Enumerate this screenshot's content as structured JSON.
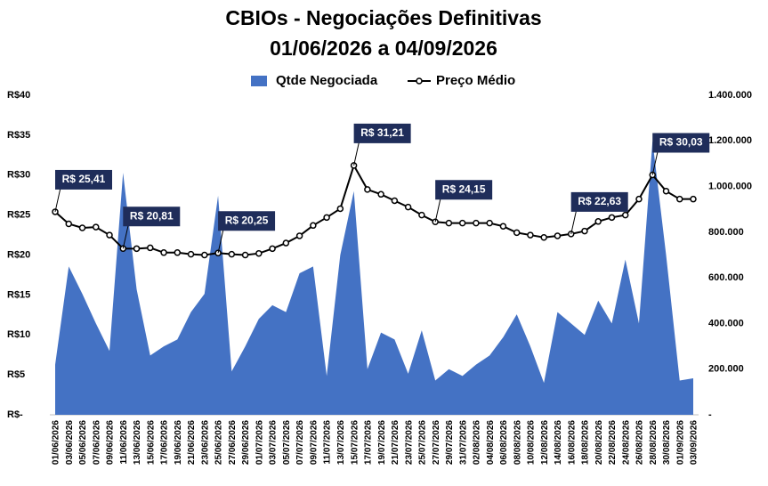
{
  "chart_data": {
    "type": "area-line",
    "title": "CBIOs - Negociações Definitivas",
    "subtitle": "01/06/2026 a 04/09/2026",
    "categories": [
      "01/06/2026",
      "03/06/2026",
      "05/06/2026",
      "07/06/2026",
      "09/06/2026",
      "11/06/2026",
      "13/06/2026",
      "15/06/2026",
      "17/06/2026",
      "19/06/2026",
      "21/06/2026",
      "23/06/2026",
      "25/06/2026",
      "27/06/2026",
      "29/06/2026",
      "01/07/2026",
      "03/07/2026",
      "05/07/2026",
      "07/07/2026",
      "09/07/2026",
      "11/07/2026",
      "13/07/2026",
      "15/07/2026",
      "17/07/2026",
      "19/07/2026",
      "21/07/2026",
      "23/07/2026",
      "25/07/2026",
      "27/07/2026",
      "29/07/2026",
      "31/07/2026",
      "02/08/2026",
      "04/08/2026",
      "06/08/2026",
      "08/08/2026",
      "10/08/2026",
      "12/08/2026",
      "14/08/2026",
      "16/08/2026",
      "18/08/2026",
      "20/08/2026",
      "22/08/2026",
      "24/08/2026",
      "26/08/2026",
      "28/08/2026",
      "30/08/2026",
      "01/09/2026",
      "03/09/2026"
    ],
    "series": [
      {
        "name": "Qtde Negociada",
        "color": "#4472c4",
        "axis": "y2",
        "values": [
          220000,
          650000,
          530000,
          400000,
          280000,
          1060000,
          550000,
          260000,
          300000,
          330000,
          450000,
          530000,
          960000,
          190000,
          300000,
          420000,
          480000,
          450000,
          620000,
          650000,
          170000,
          700000,
          980000,
          200000,
          360000,
          330000,
          180000,
          370000,
          150000,
          200000,
          170000,
          220000,
          260000,
          340000,
          440000,
          300000,
          140000,
          450000,
          400000,
          350000,
          500000,
          400000,
          680000,
          400000,
          1200000,
          700000,
          150000,
          160000
        ]
      },
      {
        "name": "Preço Médio",
        "color": "#000000",
        "axis": "y",
        "values": [
          25.41,
          23.9,
          23.4,
          23.5,
          22.5,
          20.81,
          20.8,
          20.9,
          20.3,
          20.3,
          20.1,
          20.0,
          20.25,
          20.1,
          20.0,
          20.2,
          20.8,
          21.5,
          22.4,
          23.7,
          24.7,
          25.8,
          31.21,
          28.2,
          27.6,
          26.8,
          26.0,
          25.0,
          24.15,
          24.0,
          24.0,
          24.0,
          24.0,
          23.6,
          22.8,
          22.5,
          22.2,
          22.4,
          22.63,
          23.0,
          24.2,
          24.7,
          25.0,
          27.0,
          30.03,
          28.0,
          27.0,
          27.0
        ],
        "value_labels": [
          "R$ 25,41",
          null,
          null,
          null,
          null,
          "R$ 20,81",
          null,
          null,
          null,
          null,
          null,
          null,
          "R$ 20,25",
          null,
          null,
          null,
          null,
          null,
          null,
          null,
          null,
          null,
          "R$ 31,21",
          null,
          null,
          null,
          null,
          null,
          "R$ 24,15",
          null,
          null,
          null,
          null,
          null,
          null,
          null,
          null,
          null,
          "R$ 22,63",
          null,
          null,
          null,
          null,
          null,
          "R$ 30,03",
          null,
          null,
          null
        ]
      }
    ],
    "ylim": [
      0,
      40
    ],
    "yticks": [
      {
        "value": 0,
        "label": "R$-"
      },
      {
        "value": 5,
        "label": "R$5"
      },
      {
        "value": 10,
        "label": "R$10"
      },
      {
        "value": 15,
        "label": "R$15"
      },
      {
        "value": 20,
        "label": "R$20"
      },
      {
        "value": 25,
        "label": "R$25"
      },
      {
        "value": 30,
        "label": "R$30"
      },
      {
        "value": 35,
        "label": "R$35"
      },
      {
        "value": 40,
        "label": "R$40"
      }
    ],
    "y2lim": [
      0,
      1400000
    ],
    "y2ticks": [
      {
        "value": 0,
        "label": "-"
      },
      {
        "value": 200000,
        "label": "200.000"
      },
      {
        "value": 400000,
        "label": "400.000"
      },
      {
        "value": 600000,
        "label": "600.000"
      },
      {
        "value": 800000,
        "label": "800.000"
      },
      {
        "value": 1000000,
        "label": "1.000.000"
      },
      {
        "value": 1200000,
        "label": "1.200.000"
      },
      {
        "value": 1400000,
        "label": "1.400.000"
      }
    ],
    "label_color": "#1f2d5a"
  }
}
